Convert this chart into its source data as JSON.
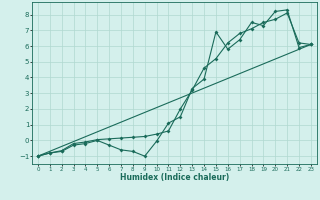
{
  "title": "",
  "xlabel": "Humidex (Indice chaleur)",
  "background_color": "#d4f0ec",
  "line_color": "#1a6b5a",
  "grid_color": "#b0d8d0",
  "xlim": [
    -0.5,
    23.5
  ],
  "ylim": [
    -1.5,
    8.8
  ],
  "xticks": [
    0,
    1,
    2,
    3,
    4,
    5,
    6,
    7,
    8,
    9,
    10,
    11,
    12,
    13,
    14,
    15,
    16,
    17,
    18,
    19,
    20,
    21,
    22,
    23
  ],
  "yticks": [
    -1,
    0,
    1,
    2,
    3,
    4,
    5,
    6,
    7,
    8
  ],
  "line1_x": [
    0,
    1,
    2,
    3,
    4,
    5,
    6,
    7,
    8,
    9,
    10,
    11,
    12,
    13,
    14,
    15,
    16,
    17,
    18,
    19,
    20,
    21,
    22,
    23
  ],
  "line1_y": [
    -1.0,
    -0.8,
    -0.7,
    -0.3,
    -0.2,
    0.0,
    -0.3,
    -0.6,
    -0.7,
    -1.0,
    -0.05,
    1.1,
    1.5,
    3.3,
    3.9,
    6.9,
    5.8,
    6.4,
    7.5,
    7.3,
    8.2,
    8.3,
    5.9,
    6.1
  ],
  "line2_x": [
    0,
    1,
    2,
    3,
    4,
    5,
    6,
    7,
    8,
    9,
    10,
    11,
    12,
    13,
    14,
    15,
    16,
    17,
    18,
    19,
    20,
    21,
    22,
    23
  ],
  "line2_y": [
    -1.0,
    -0.8,
    -0.65,
    -0.2,
    -0.1,
    0.05,
    0.1,
    0.15,
    0.2,
    0.25,
    0.4,
    0.6,
    2.0,
    3.2,
    4.6,
    5.2,
    6.2,
    6.8,
    7.1,
    7.5,
    7.7,
    8.1,
    6.2,
    6.1
  ],
  "line3_x": [
    0,
    23
  ],
  "line3_y": [
    -1.0,
    6.1
  ],
  "xlabel_fontsize": 5.5,
  "tick_fontsize_x": 4.0,
  "tick_fontsize_y": 5.0
}
